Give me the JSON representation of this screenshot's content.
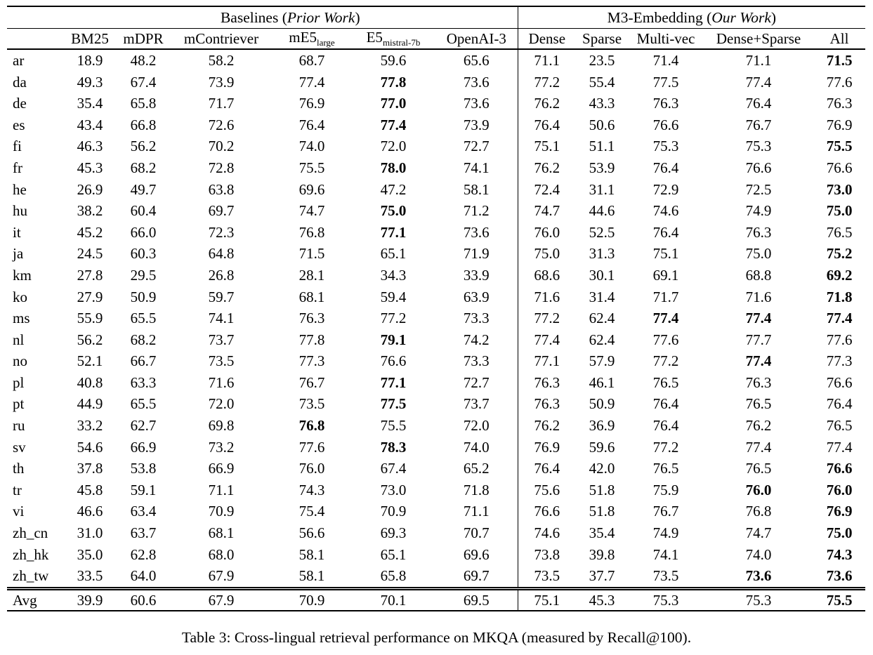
{
  "caption": "Table 3: Cross-lingual retrieval performance on MKQA (measured by Recall@100).",
  "table": {
    "groups": [
      {
        "prefix": "Baselines (",
        "italic": "Prior Work",
        "suffix": ")"
      },
      {
        "prefix": "M3-Embedding (",
        "italic": "Our Work",
        "suffix": ")"
      }
    ],
    "columns": [
      {
        "label": "BM25"
      },
      {
        "label": "mDPR"
      },
      {
        "label": "mContriever"
      },
      {
        "base": "mE5",
        "sub": "large"
      },
      {
        "base": "E5",
        "sub": "mistral-7b"
      },
      {
        "label": "OpenAI-3"
      },
      {
        "label": "Dense"
      },
      {
        "label": "Sparse"
      },
      {
        "label": "Multi-vec"
      },
      {
        "label": "Dense+Sparse"
      },
      {
        "label": "All"
      }
    ],
    "rows": [
      {
        "lang": "ar",
        "values": [
          "18.9",
          "48.2",
          "58.2",
          "68.7",
          "59.6",
          "65.6",
          "71.1",
          "23.5",
          "71.4",
          "71.1",
          "71.5"
        ],
        "bold": [
          10
        ]
      },
      {
        "lang": "da",
        "values": [
          "49.3",
          "67.4",
          "73.9",
          "77.4",
          "77.8",
          "73.6",
          "77.2",
          "55.4",
          "77.5",
          "77.4",
          "77.6"
        ],
        "bold": [
          4
        ]
      },
      {
        "lang": "de",
        "values": [
          "35.4",
          "65.8",
          "71.7",
          "76.9",
          "77.0",
          "73.6",
          "76.2",
          "43.3",
          "76.3",
          "76.4",
          "76.3"
        ],
        "bold": [
          4
        ]
      },
      {
        "lang": "es",
        "values": [
          "43.4",
          "66.8",
          "72.6",
          "76.4",
          "77.4",
          "73.9",
          "76.4",
          "50.6",
          "76.6",
          "76.7",
          "76.9"
        ],
        "bold": [
          4
        ]
      },
      {
        "lang": "fi",
        "values": [
          "46.3",
          "56.2",
          "70.2",
          "74.0",
          "72.0",
          "72.7",
          "75.1",
          "51.1",
          "75.3",
          "75.3",
          "75.5"
        ],
        "bold": [
          10
        ]
      },
      {
        "lang": "fr",
        "values": [
          "45.3",
          "68.2",
          "72.8",
          "75.5",
          "78.0",
          "74.1",
          "76.2",
          "53.9",
          "76.4",
          "76.6",
          "76.6"
        ],
        "bold": [
          4
        ]
      },
      {
        "lang": "he",
        "values": [
          "26.9",
          "49.7",
          "63.8",
          "69.6",
          "47.2",
          "58.1",
          "72.4",
          "31.1",
          "72.9",
          "72.5",
          "73.0"
        ],
        "bold": [
          10
        ]
      },
      {
        "lang": "hu",
        "values": [
          "38.2",
          "60.4",
          "69.7",
          "74.7",
          "75.0",
          "71.2",
          "74.7",
          "44.6",
          "74.6",
          "74.9",
          "75.0"
        ],
        "bold": [
          4,
          10
        ]
      },
      {
        "lang": "it",
        "values": [
          "45.2",
          "66.0",
          "72.3",
          "76.8",
          "77.1",
          "73.6",
          "76.0",
          "52.5",
          "76.4",
          "76.3",
          "76.5"
        ],
        "bold": [
          4
        ]
      },
      {
        "lang": "ja",
        "values": [
          "24.5",
          "60.3",
          "64.8",
          "71.5",
          "65.1",
          "71.9",
          "75.0",
          "31.3",
          "75.1",
          "75.0",
          "75.2"
        ],
        "bold": [
          10
        ]
      },
      {
        "lang": "km",
        "values": [
          "27.8",
          "29.5",
          "26.8",
          "28.1",
          "34.3",
          "33.9",
          "68.6",
          "30.1",
          "69.1",
          "68.8",
          "69.2"
        ],
        "bold": [
          10
        ]
      },
      {
        "lang": "ko",
        "values": [
          "27.9",
          "50.9",
          "59.7",
          "68.1",
          "59.4",
          "63.9",
          "71.6",
          "31.4",
          "71.7",
          "71.6",
          "71.8"
        ],
        "bold": [
          10
        ]
      },
      {
        "lang": "ms",
        "values": [
          "55.9",
          "65.5",
          "74.1",
          "76.3",
          "77.2",
          "73.3",
          "77.2",
          "62.4",
          "77.4",
          "77.4",
          "77.4"
        ],
        "bold": [
          8,
          9,
          10
        ]
      },
      {
        "lang": "nl",
        "values": [
          "56.2",
          "68.2",
          "73.7",
          "77.8",
          "79.1",
          "74.2",
          "77.4",
          "62.4",
          "77.6",
          "77.7",
          "77.6"
        ],
        "bold": [
          4
        ]
      },
      {
        "lang": "no",
        "values": [
          "52.1",
          "66.7",
          "73.5",
          "77.3",
          "76.6",
          "73.3",
          "77.1",
          "57.9",
          "77.2",
          "77.4",
          "77.3"
        ],
        "bold": [
          9
        ]
      },
      {
        "lang": "pl",
        "values": [
          "40.8",
          "63.3",
          "71.6",
          "76.7",
          "77.1",
          "72.7",
          "76.3",
          "46.1",
          "76.5",
          "76.3",
          "76.6"
        ],
        "bold": [
          4
        ]
      },
      {
        "lang": "pt",
        "values": [
          "44.9",
          "65.5",
          "72.0",
          "73.5",
          "77.5",
          "73.7",
          "76.3",
          "50.9",
          "76.4",
          "76.5",
          "76.4"
        ],
        "bold": [
          4
        ]
      },
      {
        "lang": "ru",
        "values": [
          "33.2",
          "62.7",
          "69.8",
          "76.8",
          "75.5",
          "72.0",
          "76.2",
          "36.9",
          "76.4",
          "76.2",
          "76.5"
        ],
        "bold": [
          3
        ]
      },
      {
        "lang": "sv",
        "values": [
          "54.6",
          "66.9",
          "73.2",
          "77.6",
          "78.3",
          "74.0",
          "76.9",
          "59.6",
          "77.2",
          "77.4",
          "77.4"
        ],
        "bold": [
          4
        ]
      },
      {
        "lang": "th",
        "values": [
          "37.8",
          "53.8",
          "66.9",
          "76.0",
          "67.4",
          "65.2",
          "76.4",
          "42.0",
          "76.5",
          "76.5",
          "76.6"
        ],
        "bold": [
          10
        ]
      },
      {
        "lang": "tr",
        "values": [
          "45.8",
          "59.1",
          "71.1",
          "74.3",
          "73.0",
          "71.8",
          "75.6",
          "51.8",
          "75.9",
          "76.0",
          "76.0"
        ],
        "bold": [
          9,
          10
        ]
      },
      {
        "lang": "vi",
        "values": [
          "46.6",
          "63.4",
          "70.9",
          "75.4",
          "70.9",
          "71.1",
          "76.6",
          "51.8",
          "76.7",
          "76.8",
          "76.9"
        ],
        "bold": [
          10
        ]
      },
      {
        "lang": "zh_cn",
        "values": [
          "31.0",
          "63.7",
          "68.1",
          "56.6",
          "69.3",
          "70.7",
          "74.6",
          "35.4",
          "74.9",
          "74.7",
          "75.0"
        ],
        "bold": [
          10
        ]
      },
      {
        "lang": "zh_hk",
        "values": [
          "35.0",
          "62.8",
          "68.0",
          "58.1",
          "65.1",
          "69.6",
          "73.8",
          "39.8",
          "74.1",
          "74.0",
          "74.3"
        ],
        "bold": [
          10
        ]
      },
      {
        "lang": "zh_tw",
        "values": [
          "33.5",
          "64.0",
          "67.9",
          "58.1",
          "65.8",
          "69.7",
          "73.5",
          "37.7",
          "73.5",
          "73.6",
          "73.6"
        ],
        "bold": [
          9,
          10
        ]
      }
    ],
    "avg": {
      "lang": "Avg",
      "values": [
        "39.9",
        "60.6",
        "67.9",
        "70.9",
        "70.1",
        "69.5",
        "75.1",
        "45.3",
        "75.3",
        "75.3",
        "75.5"
      ],
      "bold": [
        10
      ]
    }
  }
}
